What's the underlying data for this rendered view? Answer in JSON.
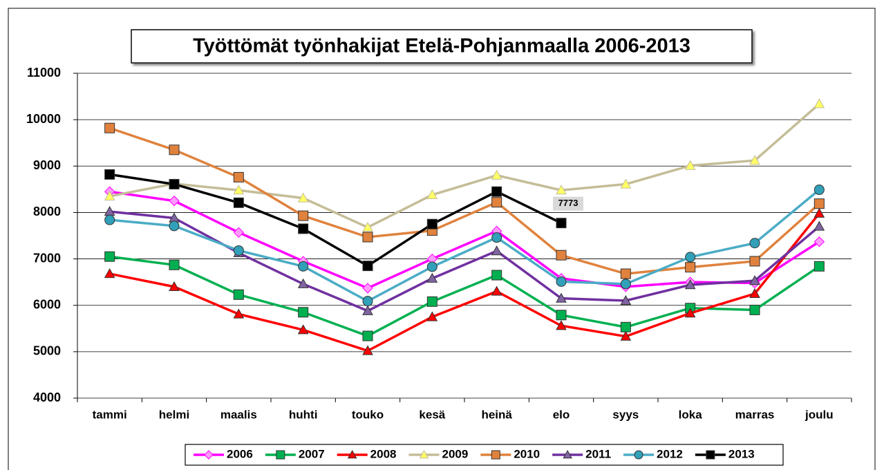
{
  "chart_data": {
    "type": "line",
    "title": "Työttömät työnhakijat Etelä-Pohjanmaalla 2006-2013",
    "categories": [
      "tammi",
      "helmi",
      "maalis",
      "huhti",
      "touko",
      "kesä",
      "heinä",
      "elo",
      "syys",
      "loka",
      "marras",
      "joulu"
    ],
    "ylim": [
      4000,
      11000
    ],
    "yticks": [
      4000,
      5000,
      6000,
      7000,
      8000,
      9000,
      10000,
      11000
    ],
    "grid": true,
    "legend": "bottom",
    "series": [
      {
        "name": "2006",
        "color": "#ff00ff",
        "marker": "diamond",
        "marker_color": "#ff99ff",
        "values": [
          8450,
          8250,
          7570,
          6950,
          6370,
          7000,
          7600,
          6580,
          6400,
          6500,
          6480,
          7370
        ]
      },
      {
        "name": "2007",
        "color": "#00b050",
        "marker": "square",
        "marker_color": "#00b050",
        "values": [
          7050,
          6870,
          6230,
          5850,
          5340,
          6080,
          6650,
          5790,
          5530,
          5940,
          5900,
          6840
        ]
      },
      {
        "name": "2008",
        "color": "#ff0000",
        "marker": "triangle",
        "marker_color": "#ff0000",
        "values": [
          6680,
          6400,
          5810,
          5470,
          5020,
          5750,
          6300,
          5560,
          5330,
          5830,
          6250,
          7980
        ]
      },
      {
        "name": "2009",
        "color": "#c4bd97",
        "marker": "triangle",
        "marker_color": "#ffff66",
        "values": [
          8350,
          8620,
          8480,
          8310,
          7680,
          8380,
          8800,
          8480,
          8610,
          9010,
          9120,
          10340
        ]
      },
      {
        "name": "2010",
        "color": "#e0823d",
        "marker": "square",
        "marker_color": "#e0823d",
        "values": [
          9820,
          9350,
          8760,
          7930,
          7470,
          7610,
          8220,
          7080,
          6680,
          6820,
          6950,
          8190
        ]
      },
      {
        "name": "2011",
        "color": "#7030a0",
        "marker": "triangle",
        "marker_color": "#8064a2",
        "values": [
          8020,
          7880,
          7130,
          6460,
          5880,
          6580,
          7170,
          6150,
          6100,
          6440,
          6530,
          7700
        ]
      },
      {
        "name": "2012",
        "color": "#4bacc6",
        "marker": "circle",
        "marker_color": "#31a0b8",
        "values": [
          7840,
          7710,
          7180,
          6840,
          6090,
          6830,
          7460,
          6510,
          6460,
          7040,
          7340,
          8490
        ]
      },
      {
        "name": "2013",
        "color": "#000000",
        "marker": "square",
        "marker_color": "#000000",
        "label_last": true,
        "values": [
          8820,
          8610,
          8210,
          7650,
          6850,
          7750,
          8450,
          7773,
          null,
          null,
          null,
          null
        ]
      }
    ]
  }
}
